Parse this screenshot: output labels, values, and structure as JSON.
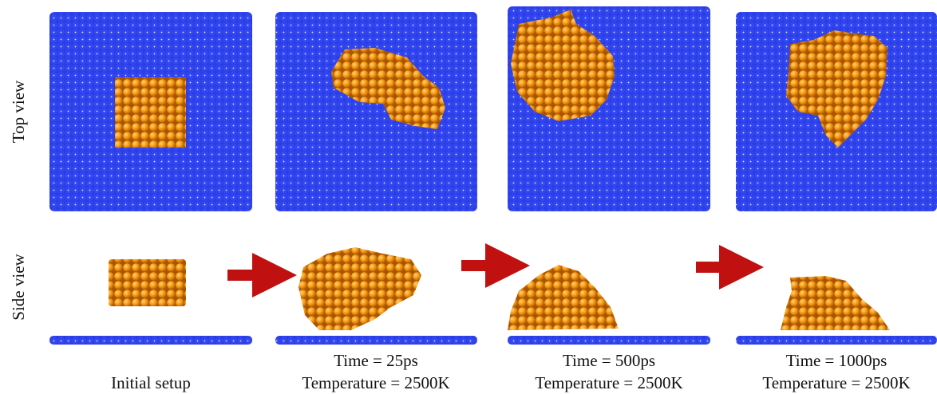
{
  "row_labels": [
    "Top view",
    "Side view"
  ],
  "panels": [
    {
      "captions": [
        "Initial setup"
      ]
    },
    {
      "captions": [
        "Time = 25ps",
        "Temperature = 2500K"
      ]
    },
    {
      "captions": [
        "Time = 500ps",
        "Temperature = 2500K"
      ]
    },
    {
      "captions": [
        "Time = 1000ps",
        "Temperature = 2500K"
      ]
    }
  ]
}
